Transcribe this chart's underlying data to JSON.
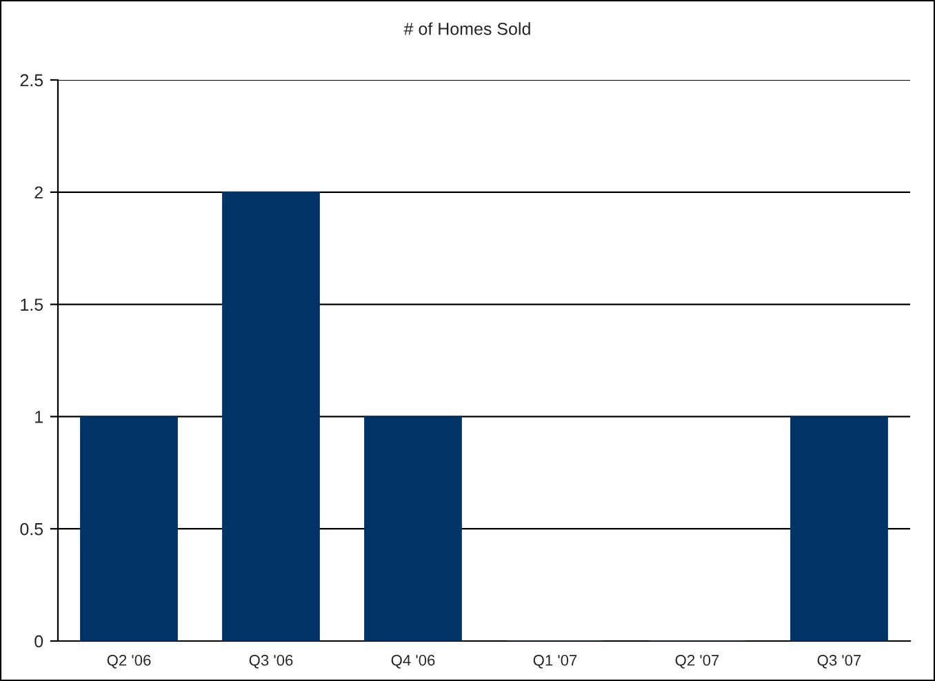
{
  "chart_data": {
    "type": "bar",
    "title": "# of Homes Sold",
    "categories": [
      "Q2 '06",
      "Q3 '06",
      "Q4 '06",
      "Q1 '07",
      "Q2 '07",
      "Q3 '07"
    ],
    "values": [
      1,
      2,
      1,
      0,
      0,
      1
    ],
    "color": "#003366",
    "ylim": [
      0,
      2.5
    ],
    "yticks": [
      0,
      0.5,
      1,
      1.5,
      2,
      2.5
    ],
    "grid": "y"
  }
}
